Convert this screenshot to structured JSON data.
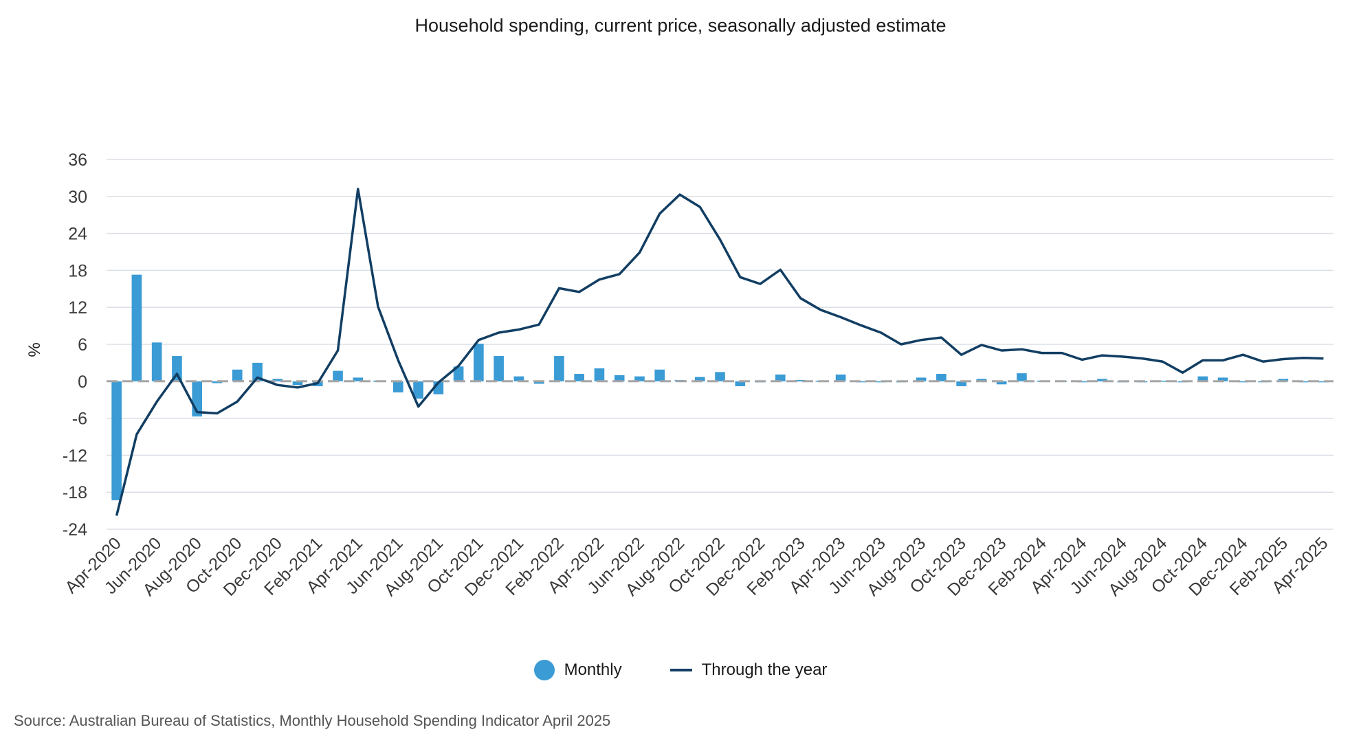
{
  "chart_data": {
    "type": "bar+line",
    "title": "Household spending, current price, seasonally adjusted estimate",
    "ylabel": "%",
    "xlabel": "",
    "ylim": [
      -24,
      36
    ],
    "yticks": [
      36,
      30,
      24,
      18,
      12,
      6,
      0,
      -6,
      -12,
      -18,
      -24
    ],
    "ytick_labels": [
      "36",
      "30",
      "24",
      "18",
      "12",
      "6",
      "0",
      "-6",
      "-12",
      "-18",
      "-24"
    ],
    "grid": true,
    "legend_position": "bottom-center",
    "categories": [
      "Apr-2020",
      "May-2020",
      "Jun-2020",
      "Jul-2020",
      "Aug-2020",
      "Sep-2020",
      "Oct-2020",
      "Nov-2020",
      "Dec-2020",
      "Jan-2021",
      "Feb-2021",
      "Mar-2021",
      "Apr-2021",
      "May-2021",
      "Jun-2021",
      "Jul-2021",
      "Aug-2021",
      "Sep-2021",
      "Oct-2021",
      "Nov-2021",
      "Dec-2021",
      "Jan-2022",
      "Feb-2022",
      "Mar-2022",
      "Apr-2022",
      "May-2022",
      "Jun-2022",
      "Jul-2022",
      "Aug-2022",
      "Sep-2022",
      "Oct-2022",
      "Nov-2022",
      "Dec-2022",
      "Jan-2023",
      "Feb-2023",
      "Mar-2023",
      "Apr-2023",
      "May-2023",
      "Jun-2023",
      "Jul-2023",
      "Aug-2023",
      "Sep-2023",
      "Oct-2023",
      "Nov-2023",
      "Dec-2023",
      "Jan-2024",
      "Feb-2024",
      "Mar-2024",
      "Apr-2024",
      "May-2024",
      "Jun-2024",
      "Jul-2024",
      "Aug-2024",
      "Sep-2024",
      "Oct-2024",
      "Nov-2024",
      "Dec-2024",
      "Jan-2025",
      "Feb-2025",
      "Mar-2025",
      "Apr-2025"
    ],
    "xtick_labels": [
      "Apr-2020",
      "Jun-2020",
      "Aug-2020",
      "Oct-2020",
      "Dec-2020",
      "Feb-2021",
      "Apr-2021",
      "Jun-2021",
      "Aug-2021",
      "Oct-2021",
      "Dec-2021",
      "Feb-2022",
      "Apr-2022",
      "Jun-2022",
      "Aug-2022",
      "Oct-2022",
      "Dec-2022",
      "Feb-2023",
      "Apr-2023",
      "Jun-2023",
      "Aug-2023",
      "Oct-2023",
      "Dec-2023",
      "Feb-2024",
      "Apr-2024",
      "Jun-2024",
      "Aug-2024",
      "Oct-2024",
      "Dec-2024",
      "Feb-2025",
      "Apr-2025"
    ],
    "series": [
      {
        "name": "Monthly",
        "type": "bar",
        "color": "#3a9bd5",
        "values": [
          -19.3,
          17.3,
          6.3,
          4.1,
          -5.7,
          -0.3,
          1.9,
          3.0,
          0.4,
          -0.6,
          -0.8,
          1.7,
          0.6,
          0.1,
          -1.8,
          -2.8,
          -2.1,
          2.4,
          6.1,
          4.1,
          0.8,
          -0.4,
          4.1,
          1.2,
          2.1,
          1.0,
          0.8,
          1.9,
          0.2,
          0.7,
          1.5,
          -0.8,
          0.0,
          1.1,
          0.2,
          0.1,
          1.1,
          0.0,
          0.0,
          0.0,
          0.6,
          1.2,
          -0.8,
          0.4,
          -0.5,
          1.3,
          0.1,
          0.1,
          0.0,
          0.4,
          0.0,
          0.0,
          0.1,
          0.0,
          0.8,
          0.6,
          0.0,
          0.0,
          0.4,
          0.0,
          0.0
        ]
      },
      {
        "name": "Through the year",
        "type": "line",
        "color": "#123e63",
        "values": [
          -21.8,
          -8.6,
          -3.3,
          1.2,
          -5.0,
          -5.2,
          -3.3,
          0.6,
          -0.6,
          -1.0,
          -0.3,
          5.0,
          31.2,
          12.1,
          3.4,
          -4.1,
          -0.2,
          2.5,
          6.7,
          7.9,
          8.4,
          9.2,
          15.1,
          14.5,
          16.5,
          17.4,
          20.9,
          27.2,
          30.3,
          28.3,
          23.0,
          16.9,
          15.8,
          18.1,
          13.5,
          11.6,
          10.4,
          9.1,
          7.9,
          6.0,
          6.7,
          7.1,
          4.3,
          5.9,
          5.0,
          5.2,
          4.6,
          4.6,
          3.5,
          4.2,
          4.0,
          3.7,
          3.2,
          1.4,
          3.4,
          3.4,
          4.3,
          3.2,
          3.6,
          3.8,
          3.7
        ]
      }
    ]
  },
  "legend": {
    "items": [
      {
        "label": "Monthly",
        "color": "#3a9bd5"
      },
      {
        "label": "Through the year",
        "color": "#123e63"
      }
    ]
  },
  "source": "Source: Australian Bureau of Statistics, Monthly Household Spending Indicator April 2025",
  "colors": {
    "grid": "#dcdfe6",
    "zero_line": "#a6a6a6",
    "text": "#3a3a3a"
  }
}
